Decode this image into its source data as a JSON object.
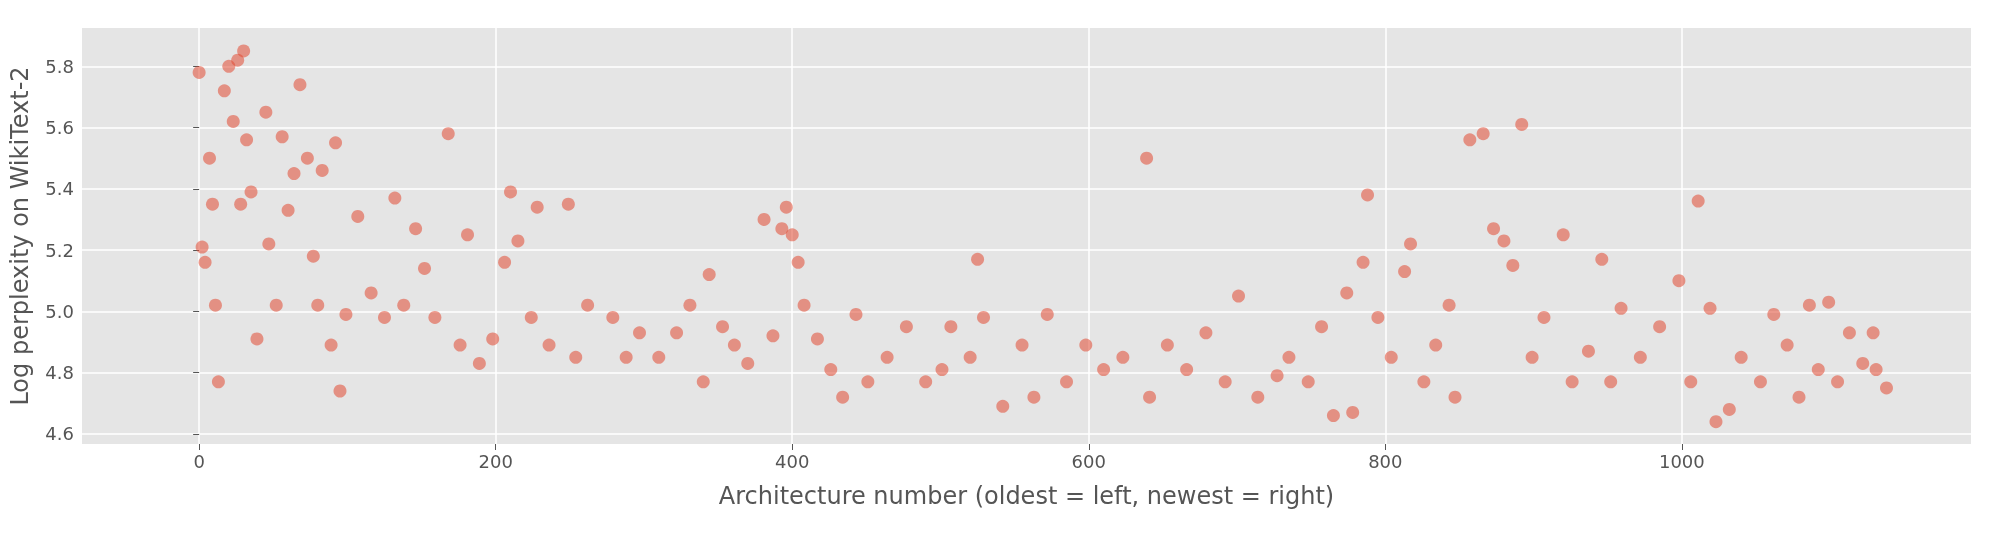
{
  "chart_data": {
    "type": "scatter",
    "xlabel": "Architecture number (oldest = left, newest = right)",
    "ylabel": "Log perplexity on WikiText-2",
    "xlim": [
      -79,
      1195
    ],
    "ylim": [
      4.567,
      5.925
    ],
    "xticks": [
      0,
      200,
      400,
      600,
      800,
      1000
    ],
    "yticks": [
      4.6,
      4.8,
      {
        "value": 5,
        "label": "5.0"
      },
      5.2,
      5.4,
      5.6,
      5.8
    ],
    "grid": true,
    "marker": "circle",
    "series": [
      {
        "color": "#e24a33",
        "x": [
          0,
          2,
          4,
          7,
          9,
          11,
          13,
          17,
          20,
          23,
          26,
          30,
          28,
          32,
          35,
          39,
          45,
          47,
          52,
          56,
          60,
          64,
          68,
          73,
          77,
          80,
          83,
          89,
          92,
          95,
          99,
          107,
          116,
          125,
          132,
          138,
          146,
          152,
          159,
          168,
          176,
          181,
          189,
          198,
          206,
          210,
          215,
          224,
          228,
          236,
          249,
          254,
          262,
          279,
          288,
          297,
          310,
          322,
          331,
          340,
          344,
          353,
          361,
          370,
          381,
          387,
          393,
          396,
          400,
          404,
          408,
          417,
          426,
          434,
          443,
          451,
          464,
          477,
          490,
          501,
          507,
          520,
          525,
          529,
          542,
          555,
          563,
          572,
          585,
          598,
          610,
          623,
          639,
          641,
          653,
          666,
          679,
          692,
          701,
          714,
          727,
          735,
          748,
          757,
          765,
          774,
          778,
          785,
          788,
          795,
          804,
          813,
          817,
          826,
          834,
          843,
          847,
          857,
          866,
          873,
          880,
          886,
          892,
          899,
          907,
          920,
          926,
          937,
          946,
          952,
          959,
          972,
          985,
          998,
          1006,
          1011,
          1019,
          1023,
          1032,
          1040,
          1053,
          1062,
          1071,
          1079,
          1086,
          1092,
          1099,
          1105,
          1113,
          1122,
          1129,
          1131,
          1138
        ],
        "values": [
          5.78,
          5.21,
          5.16,
          5.5,
          5.35,
          5.02,
          4.77,
          5.72,
          5.8,
          5.62,
          5.82,
          5.85,
          5.35,
          5.56,
          5.39,
          4.91,
          5.65,
          5.22,
          5.02,
          5.57,
          5.33,
          5.45,
          5.74,
          5.5,
          5.18,
          5.02,
          5.46,
          4.89,
          5.55,
          4.74,
          4.99,
          5.31,
          5.06,
          4.98,
          5.37,
          5.02,
          5.27,
          5.14,
          4.98,
          5.58,
          4.89,
          5.25,
          4.83,
          4.91,
          5.16,
          5.39,
          5.23,
          4.98,
          5.34,
          4.89,
          5.35,
          4.85,
          5.02,
          4.98,
          4.85,
          4.93,
          4.85,
          4.93,
          5.02,
          4.77,
          5.12,
          4.95,
          4.89,
          4.83,
          5.3,
          4.92,
          5.27,
          5.34,
          5.25,
          5.16,
          5.02,
          4.91,
          4.81,
          4.72,
          4.99,
          4.77,
          4.85,
          4.95,
          4.77,
          4.81,
          4.95,
          4.85,
          5.17,
          4.98,
          4.69,
          4.89,
          4.72,
          4.99,
          4.77,
          4.89,
          4.81,
          4.85,
          5.5,
          4.72,
          4.89,
          4.81,
          4.93,
          4.77,
          5.05,
          4.72,
          4.79,
          4.85,
          4.77,
          4.95,
          4.66,
          5.06,
          4.67,
          5.16,
          5.38,
          4.98,
          4.85,
          5.13,
          5.22,
          4.77,
          4.89,
          5.02,
          4.72,
          5.56,
          5.58,
          5.27,
          5.23,
          5.15,
          5.61,
          4.85,
          4.98,
          5.25,
          4.77,
          4.87,
          5.17,
          4.77,
          5.01,
          4.85,
          4.95,
          5.1,
          4.77,
          5.36,
          5.01,
          4.64,
          4.68,
          4.85,
          4.77,
          4.99,
          4.89,
          4.72,
          5.02,
          4.81,
          5.03,
          4.77,
          4.93,
          4.83,
          4.93,
          4.81,
          4.75
        ]
      }
    ]
  }
}
